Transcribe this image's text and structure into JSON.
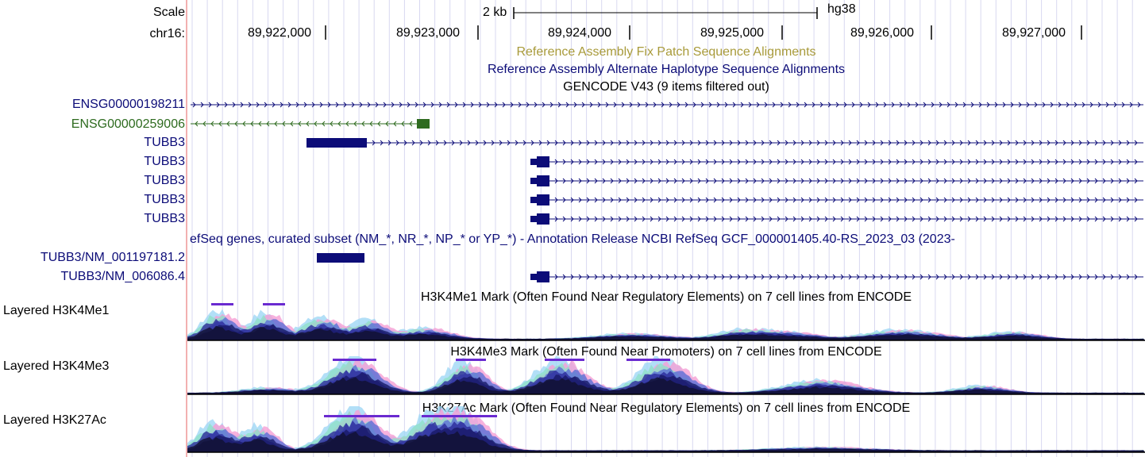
{
  "ruler": {
    "scale_label": "Scale",
    "chrom_label": "chr16:",
    "scale_text": "2 kb",
    "assembly": "hg38",
    "positions": [
      "89,922,000",
      "89,923,000",
      "89,924,000",
      "89,925,000",
      "89,926,000",
      "89,927,000"
    ]
  },
  "tracks": {
    "fix_patch": "Reference Assembly Fix Patch Sequence Alignments",
    "alt_haplotype": "Reference Assembly Alternate Haplotype Sequence Alignments",
    "gencode_title": "GENCODE V43 (9 items filtered out)",
    "gencode_items": [
      "ENSG00000198211",
      "ENSG00000259006",
      "TUBB3",
      "TUBB3",
      "TUBB3",
      "TUBB3",
      "TUBB3"
    ],
    "refseq_title": "efSeq genes, curated subset (NM_*, NR_*, NP_* or YP_*) - Annotation Release NCBI RefSeq GCF_000001405.40-RS_2023_03 (2023-",
    "refseq_items": [
      "TUBB3/NM_001197181.2",
      "TUBB3/NM_006086.4"
    ],
    "h3k4me1": {
      "label": "Layered H3K4Me1",
      "title": "H3K4Me1 Mark (Often Found Near Regulatory Elements) on 7 cell lines from ENCODE"
    },
    "h3k4me3": {
      "label": "Layered H3K4Me3",
      "title": "H3K4Me3 Mark (Often Found Near Promoters) on 7 cell lines from ENCODE"
    },
    "h3k27ac": {
      "label": "Layered H3K27Ac",
      "title": "H3K27Ac Mark (Often Found Near Regulatory Elements) on 7 cell lines from ENCODE"
    }
  },
  "colors": {
    "gene_navy": "#0c0c78",
    "gene_green": "#2e6b1f",
    "fix_patch_olive": "#a89a3a",
    "grid_line": "#d8d8f0"
  }
}
